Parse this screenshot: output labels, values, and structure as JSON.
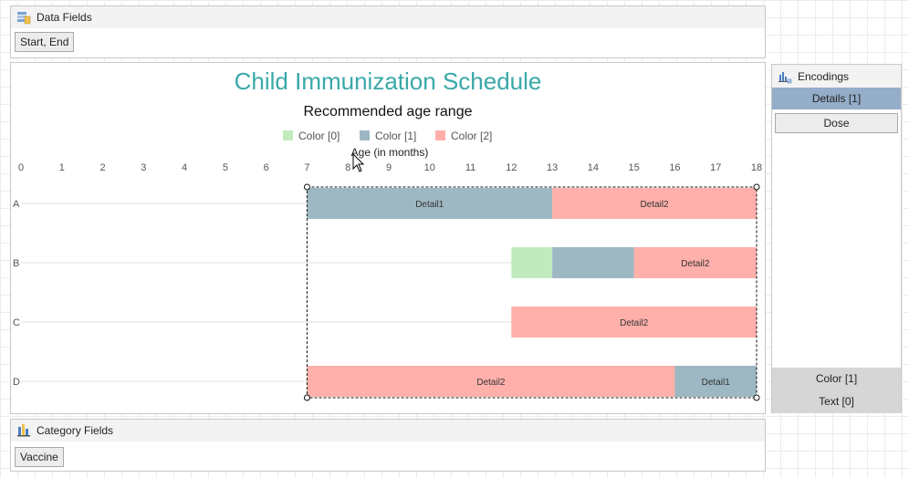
{
  "data_fields": {
    "title": "Data Fields",
    "field": "Start, End"
  },
  "category_fields": {
    "title": "Category Fields",
    "field": "Vaccine"
  },
  "encodings": {
    "title": "Encodings",
    "selected": "Details [1]",
    "item": "Dose",
    "footer": [
      "Color [1]",
      "Text [0]"
    ]
  },
  "chart_data": {
    "type": "bar",
    "orientation": "horizontal-range",
    "title": "Child Immunization Schedule",
    "subtitle": "Recommended age range",
    "xlabel": "Age (in months)",
    "xlim": [
      0,
      18
    ],
    "x_ticks": [
      0,
      1,
      2,
      3,
      4,
      5,
      6,
      7,
      8,
      9,
      10,
      11,
      12,
      13,
      14,
      15,
      16,
      17,
      18
    ],
    "categories": [
      "A",
      "B",
      "C",
      "D"
    ],
    "legend": [
      "Color [0]",
      "Color [1]",
      "Color [2]"
    ],
    "legend_placement": "top",
    "colors": [
      "#c2ebbd",
      "#9db8c2",
      "#ffb0ab"
    ],
    "bars": [
      {
        "category": "A",
        "start": 7,
        "end": 13,
        "color": 1,
        "label": "Detail1"
      },
      {
        "category": "A",
        "start": 13,
        "end": 18,
        "color": 2,
        "label": "Detail2"
      },
      {
        "category": "B",
        "start": 12,
        "end": 13,
        "color": 0,
        "label": ""
      },
      {
        "category": "B",
        "start": 13,
        "end": 15,
        "color": 1,
        "label": ""
      },
      {
        "category": "B",
        "start": 15,
        "end": 18,
        "color": 2,
        "label": "Detail2"
      },
      {
        "category": "C",
        "start": 12,
        "end": 18,
        "color": 2,
        "label": "Detail2"
      },
      {
        "category": "D",
        "start": 7,
        "end": 16,
        "color": 2,
        "label": "Detail2"
      },
      {
        "category": "D",
        "start": 16,
        "end": 18,
        "color": 1,
        "label": "Detail1"
      }
    ],
    "selection_range": [
      7,
      18
    ]
  }
}
